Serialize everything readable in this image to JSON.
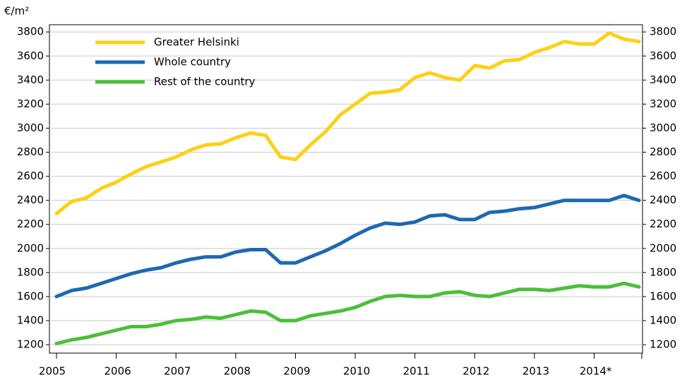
{
  "chart_data": {
    "type": "line",
    "y_label": "€/m²",
    "categories": [
      "2005",
      null,
      null,
      null,
      "2006",
      null,
      null,
      null,
      "2007",
      null,
      null,
      null,
      "2008",
      null,
      null,
      null,
      "2009",
      null,
      null,
      null,
      "2010",
      null,
      null,
      null,
      "2011",
      null,
      null,
      null,
      "2012",
      null,
      null,
      null,
      "2013",
      null,
      null,
      null,
      "2014*",
      null,
      null,
      null
    ],
    "series": [
      {
        "name": "Greater Helsinki",
        "color": "#fcd116",
        "values": [
          2290,
          2390,
          2420,
          2500,
          2550,
          2620,
          2680,
          2720,
          2760,
          2820,
          2860,
          2870,
          2920,
          2960,
          2940,
          2760,
          2740,
          2860,
          2970,
          3110,
          3200,
          3290,
          3300,
          3320,
          3420,
          3460,
          3420,
          3400,
          3520,
          3500,
          3560,
          3570,
          3630,
          3670,
          3720,
          3700,
          3700,
          3790,
          3740,
          3720
        ]
      },
      {
        "name": "Whole country",
        "color": "#1f68b0",
        "values": [
          1600,
          1650,
          1670,
          1710,
          1750,
          1790,
          1820,
          1840,
          1880,
          1910,
          1930,
          1930,
          1970,
          1990,
          1990,
          1880,
          1880,
          1930,
          1980,
          2040,
          2110,
          2170,
          2210,
          2200,
          2220,
          2270,
          2280,
          2240,
          2240,
          2300,
          2310,
          2330,
          2340,
          2370,
          2400,
          2400,
          2400,
          2400,
          2440,
          2400
        ]
      },
      {
        "name": "Rest of the country",
        "color": "#4cbf3a",
        "values": [
          1210,
          1240,
          1260,
          1290,
          1320,
          1350,
          1350,
          1370,
          1400,
          1410,
          1430,
          1420,
          1450,
          1480,
          1470,
          1400,
          1400,
          1440,
          1460,
          1480,
          1510,
          1560,
          1600,
          1610,
          1600,
          1600,
          1630,
          1640,
          1610,
          1600,
          1630,
          1660,
          1660,
          1650,
          1670,
          1690,
          1680,
          1680,
          1710,
          1680
        ]
      }
    ],
    "ylim": [
      1130,
      3860
    ],
    "yticks": [
      1200,
      1400,
      1600,
      1800,
      2000,
      2200,
      2400,
      2600,
      2800,
      3000,
      3200,
      3400,
      3600,
      3800
    ],
    "grid": true
  }
}
